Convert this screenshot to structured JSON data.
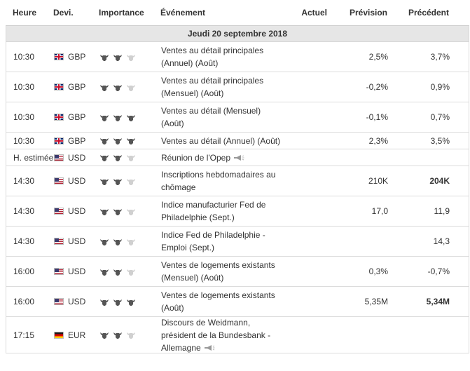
{
  "columns": {
    "time": "Heure",
    "currency": "Devi.",
    "importance": "Importance",
    "event": "Événement",
    "actual": "Actuel",
    "forecast": "Prévision",
    "previous": "Précédent"
  },
  "day_label": "Jeudi 20 septembre 2018",
  "colors": {
    "bull_on": "#555555",
    "bull_off": "#d0d0d0",
    "day_bg": "#e6e6e6"
  },
  "rows": [
    {
      "time": "10:30",
      "flag": "gb",
      "currency": "GBP",
      "importance": 2,
      "event": "Ventes au détail principales (Annuel) (Août)",
      "actual": "",
      "forecast": "2,5%",
      "previous": "3,7%"
    },
    {
      "time": "10:30",
      "flag": "gb",
      "currency": "GBP",
      "importance": 2,
      "event": "Ventes au détail principales (Mensuel) (Août)",
      "actual": "",
      "forecast": "-0,2%",
      "previous": "0,9%"
    },
    {
      "time": "10:30",
      "flag": "gb",
      "currency": "GBP",
      "importance": 3,
      "event": "Ventes au détail (Mensuel) (Août)",
      "actual": "",
      "forecast": "-0,1%",
      "previous": "0,7%"
    },
    {
      "time": "10:30",
      "flag": "gb",
      "currency": "GBP",
      "importance": 3,
      "event": "Ventes au détail (Annuel) (Août)",
      "actual": "",
      "forecast": "2,3%",
      "previous": "3,5%"
    },
    {
      "time": "H. estimée",
      "flag": "us",
      "currency": "USD",
      "importance": 2,
      "event": "Réunion de l'Opep",
      "speech": true,
      "actual": "",
      "forecast": "",
      "previous": ""
    },
    {
      "time": "14:30",
      "flag": "us",
      "currency": "USD",
      "importance": 2,
      "event": "Inscriptions hebdomadaires au chômage",
      "actual": "",
      "forecast": "210K",
      "previous": "204K",
      "prev_bold": true
    },
    {
      "time": "14:30",
      "flag": "us",
      "currency": "USD",
      "importance": 2,
      "event": "Indice manufacturier Fed de Philadelphie (Sept.)",
      "actual": "",
      "forecast": "17,0",
      "previous": "11,9"
    },
    {
      "time": "14:30",
      "flag": "us",
      "currency": "USD",
      "importance": 2,
      "event": "Indice Fed de Philadelphie - Emploi (Sept.)",
      "actual": "",
      "forecast": "",
      "previous": "14,3"
    },
    {
      "time": "16:00",
      "flag": "us",
      "currency": "USD",
      "importance": 2,
      "event": "Ventes de logements existants (Mensuel) (Août)",
      "actual": "",
      "forecast": "0,3%",
      "previous": "-0,7%"
    },
    {
      "time": "16:00",
      "flag": "us",
      "currency": "USD",
      "importance": 3,
      "event": "Ventes de logements existants (Août)",
      "actual": "",
      "forecast": "5,35M",
      "previous": "5,34M",
      "prev_bold": true
    },
    {
      "time": "17:15",
      "flag": "eu",
      "currency": "EUR",
      "importance": 2,
      "event": "Discours de Weidmann, président de la Bundesbank - Allemagne",
      "speech": true,
      "actual": "",
      "forecast": "",
      "previous": ""
    }
  ]
}
